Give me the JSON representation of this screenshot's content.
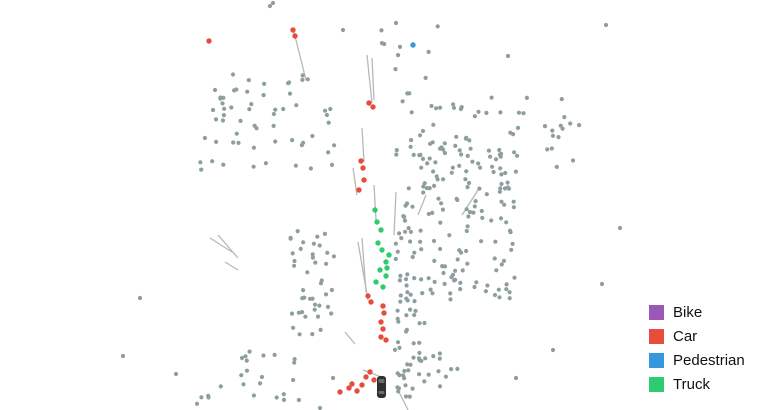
{
  "scene": {
    "colors": {
      "background": "#ffffff",
      "static_point": "#8d9e9e",
      "track_line": "#b8b8b8",
      "ego_body": "#2f2f2f",
      "ego_window": "#6b6b6b"
    }
  },
  "legend": {
    "items": [
      {
        "key": "bike",
        "label": "Bike",
        "color": "#9b59b6"
      },
      {
        "key": "car",
        "label": "Car",
        "color": "#e74c3c"
      },
      {
        "key": "pedestrian",
        "label": "Pedestrian",
        "color": "#3498db"
      },
      {
        "key": "truck",
        "label": "Truck",
        "color": "#2ecc71"
      }
    ]
  }
}
